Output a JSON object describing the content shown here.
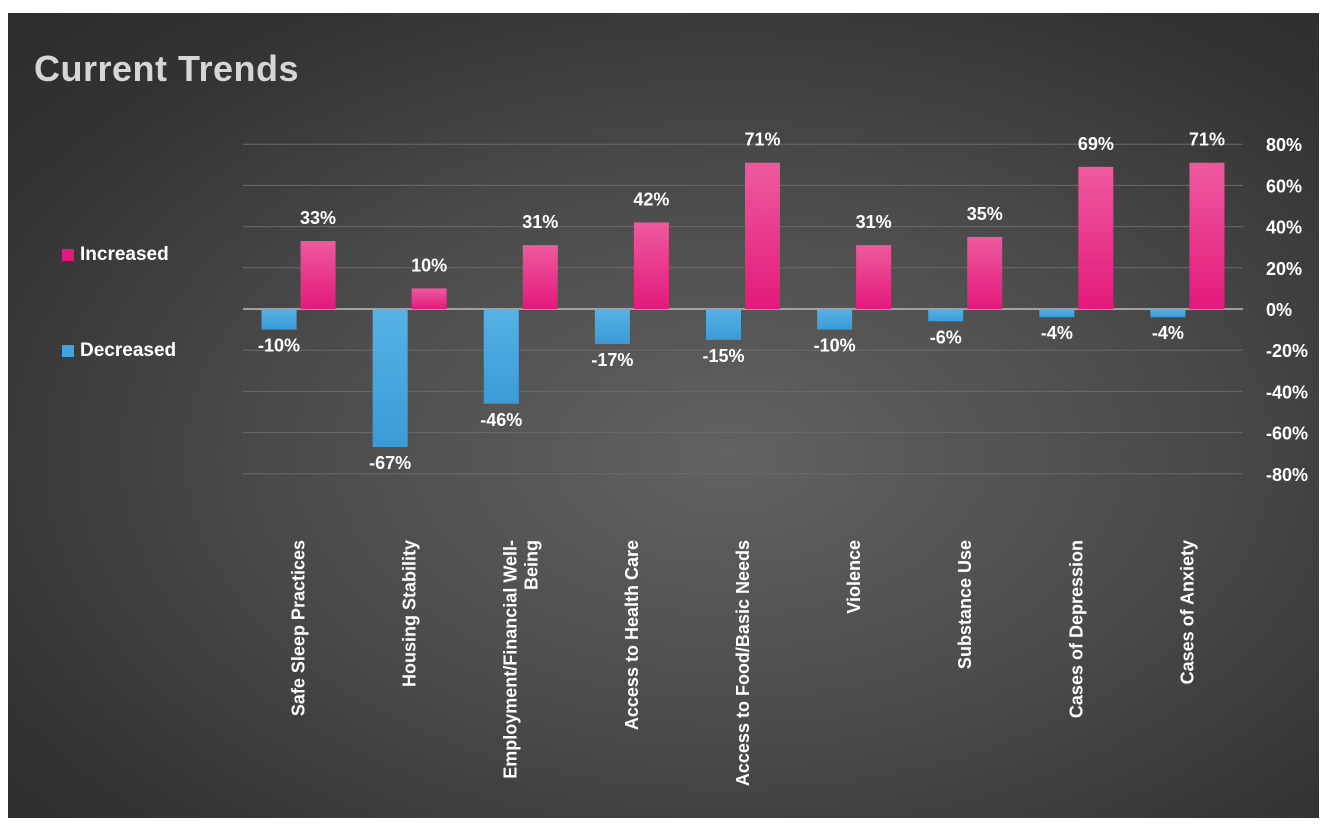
{
  "chart_data": {
    "type": "bar",
    "title": "Current Trends",
    "categories": [
      [
        "Safe Sleep Practices"
      ],
      [
        "Housing Stability"
      ],
      [
        "Employment/Financial Well-",
        "Being"
      ],
      [
        "Access to Health Care"
      ],
      [
        "Access to Food/Basic Needs"
      ],
      [
        "Violence"
      ],
      [
        "Substance Use"
      ],
      [
        "Cases of Depression"
      ],
      [
        "Cases of Anxiety"
      ]
    ],
    "series": [
      {
        "name": "Decreased",
        "color": "#41a3dc",
        "values": [
          -10,
          -67,
          -46,
          -17,
          -15,
          -10,
          -6,
          -4,
          -4
        ],
        "labels": [
          "-10%",
          "-67%",
          "-46%",
          "-17%",
          "-15%",
          "-10%",
          "-6%",
          "-4%",
          "-4%"
        ]
      },
      {
        "name": "Increased",
        "color": "#e4197c",
        "values": [
          33,
          10,
          31,
          42,
          71,
          31,
          35,
          69,
          71
        ],
        "labels": [
          "33%",
          "10%",
          "31%",
          "42%",
          "71%",
          "31%",
          "35%",
          "69%",
          "71%"
        ]
      }
    ],
    "legend_order": [
      "Increased",
      "Decreased"
    ],
    "y_ticks": [
      80,
      60,
      40,
      20,
      0,
      -20,
      -40,
      -60,
      -80
    ],
    "y_tick_labels": [
      "80%",
      "60%",
      "40%",
      "20%",
      "0%",
      "-20%",
      "-40%",
      "-60%",
      "-80%"
    ],
    "ylim": [
      -80,
      80
    ],
    "y_axis_side": "right",
    "legend_position": "left",
    "grid": true,
    "xlabel": "",
    "ylabel": ""
  }
}
